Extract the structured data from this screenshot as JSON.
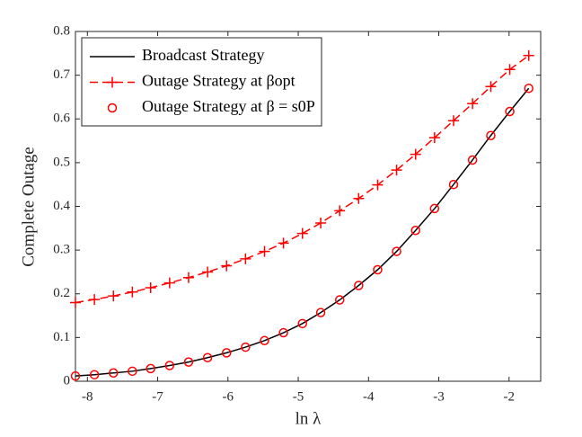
{
  "chart_data": {
    "type": "line",
    "x_label": "ln λ",
    "y_label": "Complete Outage",
    "xlim": [
      -8.17,
      -1.55
    ],
    "ylim": [
      0,
      0.8
    ],
    "xticks": [
      -8,
      -7,
      -6,
      -5,
      -4,
      -3,
      -2
    ],
    "yticks": [
      0,
      0.1,
      0.2,
      0.3,
      0.4,
      0.5,
      0.6,
      0.7,
      0.8
    ],
    "legend": "upper left",
    "x": [
      -8.17,
      -7.9,
      -7.63,
      -7.36,
      -7.1,
      -6.83,
      -6.56,
      -6.29,
      -6.02,
      -5.75,
      -5.48,
      -5.21,
      -4.94,
      -4.68,
      -4.41,
      -4.14,
      -3.87,
      -3.6,
      -3.33,
      -3.06,
      -2.79,
      -2.52,
      -2.26,
      -1.99,
      -1.72
    ],
    "series": [
      {
        "name": "Broadcast Strategy",
        "color": "#000000",
        "style": "solid",
        "values": [
          0.012,
          0.015,
          0.019,
          0.023,
          0.029,
          0.036,
          0.044,
          0.054,
          0.065,
          0.078,
          0.093,
          0.111,
          0.132,
          0.157,
          0.186,
          0.219,
          0.255,
          0.297,
          0.345,
          0.395,
          0.45,
          0.506,
          0.562,
          0.617,
          0.67
        ]
      },
      {
        "name": "Outage Strategy at βopt",
        "color": "#ff0000",
        "style": "dashed-plus",
        "values": [
          0.18,
          0.187,
          0.195,
          0.204,
          0.214,
          0.225,
          0.237,
          0.25,
          0.264,
          0.28,
          0.297,
          0.316,
          0.338,
          0.362,
          0.39,
          0.418,
          0.449,
          0.483,
          0.519,
          0.557,
          0.596,
          0.635,
          0.674,
          0.713,
          0.745
        ]
      },
      {
        "name": "Outage Strategy at β = s0P",
        "color": "#ff0000",
        "style": "circle",
        "values": [
          0.012,
          0.015,
          0.019,
          0.023,
          0.029,
          0.036,
          0.044,
          0.054,
          0.065,
          0.078,
          0.093,
          0.111,
          0.132,
          0.157,
          0.186,
          0.219,
          0.255,
          0.297,
          0.345,
          0.395,
          0.45,
          0.506,
          0.562,
          0.617,
          0.67
        ]
      }
    ]
  }
}
